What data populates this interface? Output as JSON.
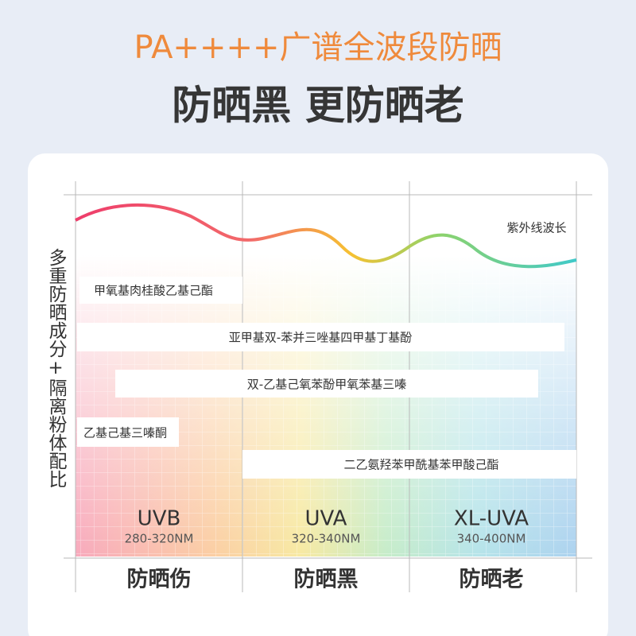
{
  "header": {
    "title": "PA++++广谱全波段防晒",
    "subtitle": "防晒黑 更防晒老"
  },
  "side_label": "多重防晒成分+隔离粉体配比",
  "wave_label": "紫外线波长",
  "ingredients": [
    "甲氧基肉桂酸乙基己酯",
    "亚甲基双-苯并三唑基四甲基丁基酚",
    "双-乙基己氧苯酚甲氧苯基三嗪",
    "乙基己基三嗪酮",
    "二乙氨羟苯甲酰基苯甲酸己酯"
  ],
  "bands": [
    {
      "name": "UVB",
      "range": "280-320NM",
      "effect": "防晒伤"
    },
    {
      "name": "UVA",
      "range": "320-340NM",
      "effect": "防晒黑"
    },
    {
      "name": "XL-UVA",
      "range": "340-400NM",
      "effect": "防晒老"
    }
  ]
}
